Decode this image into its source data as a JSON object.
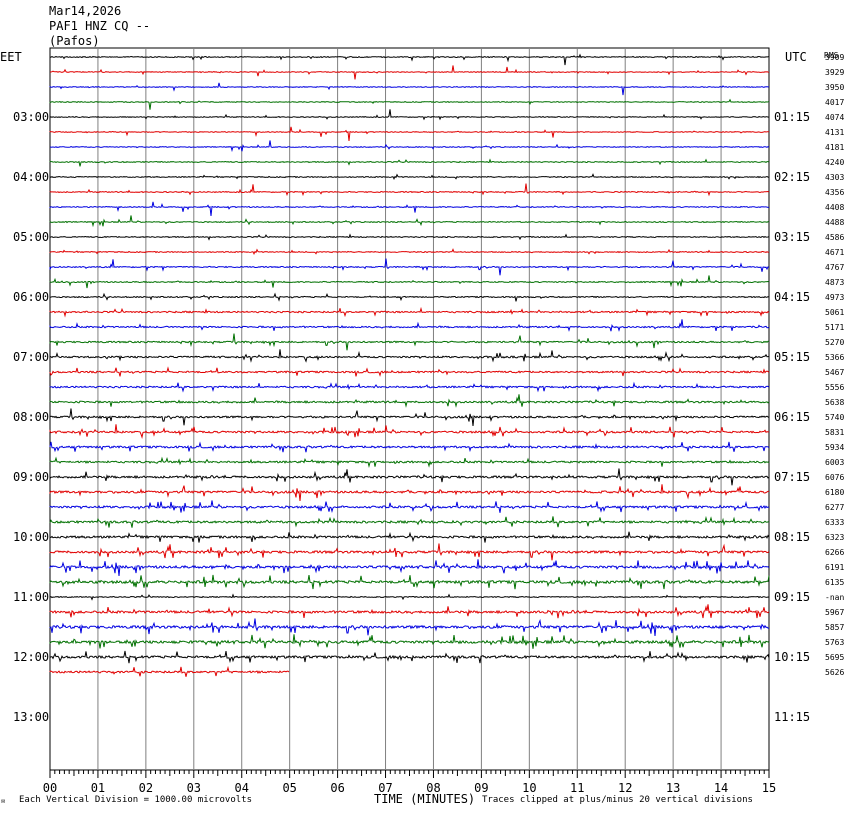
{
  "header": {
    "date": "Mar14,2026",
    "station": "PAF1 HNZ CQ --",
    "location": "(Pafos)"
  },
  "left_tz": "EET",
  "right_tz": "UTC",
  "right_unit": "RMS",
  "footer": {
    "logo": "✉",
    "scale_note": "Each Vertical Division = 1000.00 microvolts",
    "xlabel": "TIME (MINUTES)",
    "clip_note": "Traces clipped at plus/minus 20 vertical divisions"
  },
  "colors": {
    "trace_cycle": [
      "#000000",
      "#e00000",
      "#0000e0",
      "#007000"
    ],
    "grid": "#808080"
  },
  "chart_data": {
    "type": "line",
    "xlabel": "TIME (MINUTES)",
    "xlim": [
      0,
      15
    ],
    "x_ticks": [
      "00",
      "01",
      "02",
      "03",
      "04",
      "05",
      "06",
      "07",
      "08",
      "09",
      "10",
      "11",
      "12",
      "13",
      "14",
      "15"
    ],
    "lines_per_hour": 4,
    "left_hour_labels": [
      "03:00",
      "04:00",
      "05:00",
      "06:00",
      "07:00",
      "08:00",
      "09:00",
      "10:00",
      "11:00",
      "12:00",
      "13:00"
    ],
    "right_hour_labels": [
      "01:15",
      "02:15",
      "03:15",
      "04:15",
      "05:15",
      "06:15",
      "07:15",
      "08:15",
      "09:15",
      "10:15",
      "11:15"
    ],
    "rms_values": [
      "3909",
      "3929",
      "3950",
      "4017",
      "4074",
      "4131",
      "4181",
      "4240",
      "4303",
      "4356",
      "4408",
      "4488",
      "4586",
      "4671",
      "4767",
      "4873",
      "4973",
      "5061",
      "5171",
      "5270",
      "5366",
      "5467",
      "5556",
      "5638",
      "5740",
      "5831",
      "5934",
      "6003",
      "6076",
      "6180",
      "6277",
      "6333",
      "6323",
      "6266",
      "6191",
      "6135",
      "-nan",
      "5967",
      "5857",
      "5763",
      "5695",
      "5626"
    ],
    "activity": [
      0.6,
      0.5,
      0.5,
      0.5,
      0.5,
      0.5,
      0.5,
      0.6,
      0.6,
      0.6,
      0.6,
      0.6,
      0.6,
      0.6,
      0.7,
      0.7,
      0.7,
      0.9,
      0.9,
      0.9,
      1.0,
      1.0,
      1.0,
      1.1,
      1.1,
      1.2,
      1.2,
      1.1,
      1.3,
      1.3,
      1.3,
      1.3,
      1.3,
      1.4,
      1.5,
      1.6,
      0,
      1.4,
      1.6,
      1.6,
      1.4,
      1.2
    ],
    "last_line_end_minute": 5
  }
}
